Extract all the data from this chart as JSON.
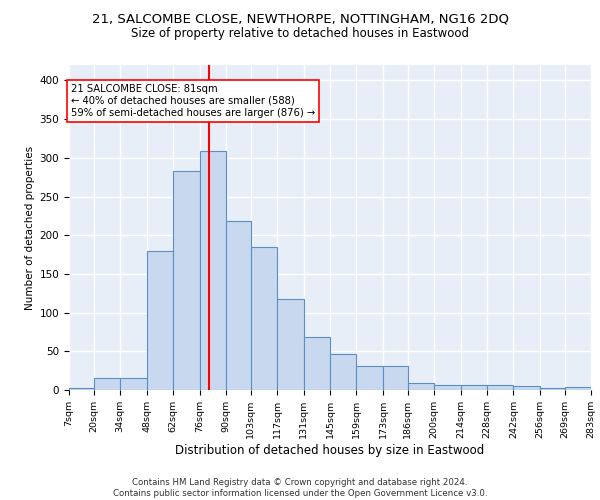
{
  "title": "21, SALCOMBE CLOSE, NEWTHORPE, NOTTINGHAM, NG16 2DQ",
  "subtitle": "Size of property relative to detached houses in Eastwood",
  "xlabel": "Distribution of detached houses by size in Eastwood",
  "ylabel": "Number of detached properties",
  "bar_color": "#c8d9ef",
  "bar_edge_color": "#5b8ec4",
  "background_color": "#e8eef8",
  "grid_color": "#ffffff",
  "vline_x": 81,
  "vline_color": "red",
  "annotation_line1": "21 SALCOMBE CLOSE: 81sqm",
  "annotation_line2": "← 40% of detached houses are smaller (588)",
  "annotation_line3": "59% of semi-detached houses are larger (876) →",
  "footer": "Contains HM Land Registry data © Crown copyright and database right 2024.\nContains public sector information licensed under the Open Government Licence v3.0.",
  "bin_edges": [
    7,
    20,
    34,
    48,
    62,
    76,
    90,
    103,
    117,
    131,
    145,
    159,
    173,
    186,
    200,
    214,
    228,
    242,
    256,
    269,
    283
  ],
  "bin_labels": [
    "7sqm",
    "20sqm",
    "34sqm",
    "48sqm",
    "62sqm",
    "76sqm",
    "90sqm",
    "103sqm",
    "117sqm",
    "131sqm",
    "145sqm",
    "159sqm",
    "173sqm",
    "186sqm",
    "200sqm",
    "214sqm",
    "228sqm",
    "242sqm",
    "256sqm",
    "269sqm",
    "283sqm"
  ],
  "bar_heights": [
    3,
    15,
    15,
    180,
    283,
    309,
    218,
    185,
    118,
    69,
    46,
    31,
    31,
    9,
    7,
    6,
    6,
    5,
    2,
    4
  ],
  "ylim": [
    0,
    420
  ],
  "yticks": [
    0,
    50,
    100,
    150,
    200,
    250,
    300,
    350,
    400
  ]
}
